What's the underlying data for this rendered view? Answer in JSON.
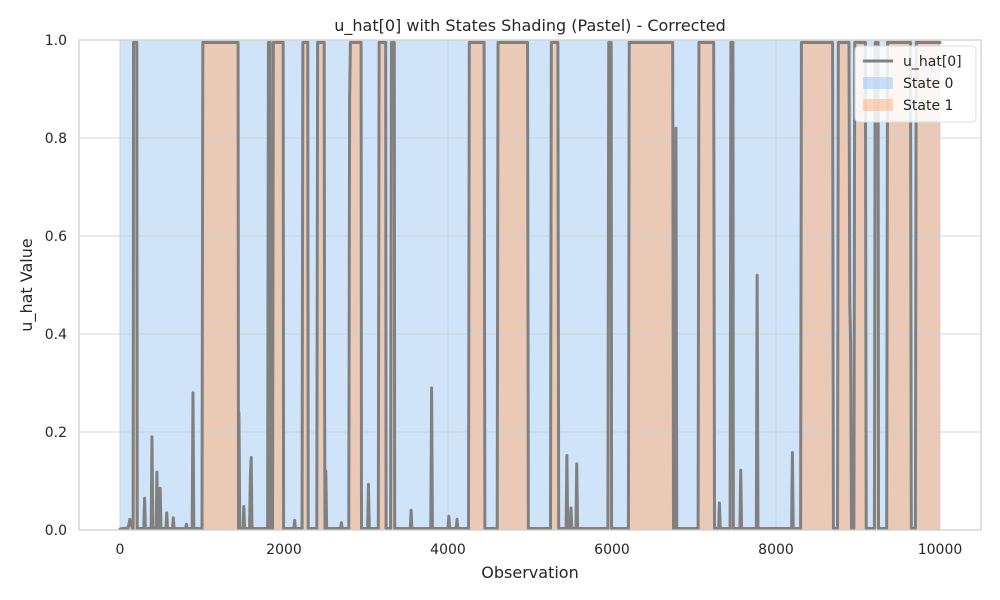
{
  "chart_data": {
    "type": "line",
    "title": "u_hat[0] with States Shading (Pastel) - Corrected",
    "xlabel": "Observation",
    "ylabel": "u_hat Value",
    "xlim": [
      -500,
      10500
    ],
    "ylim": [
      0,
      1
    ],
    "x_ticks": [
      0,
      2000,
      4000,
      6000,
      8000,
      10000
    ],
    "y_ticks": [
      0.0,
      0.2,
      0.4,
      0.6,
      0.8,
      1.0
    ],
    "x_tick_labels": [
      "0",
      "2000",
      "4000",
      "6000",
      "8000",
      "10000"
    ],
    "y_tick_labels": [
      "0.0",
      "0.2",
      "0.4",
      "0.6",
      "0.8",
      "1.0"
    ],
    "grid": true,
    "legend": {
      "placement": "top-right",
      "entries": [
        {
          "label": "u_hat[0]",
          "type": "line",
          "color": "#808080"
        },
        {
          "label": "State 0",
          "type": "patch",
          "color": "#a1c9f4"
        },
        {
          "label": "State 1",
          "type": "patch",
          "color": "#ffb482"
        }
      ]
    },
    "state_colors": {
      "0": "#a1c9f4",
      "1": "#ffb482"
    },
    "state1_intervals": [
      [
        160,
        210
      ],
      [
        1000,
        1450
      ],
      [
        1800,
        2000
      ],
      [
        2220,
        2300
      ],
      [
        2400,
        2500
      ],
      [
        2800,
        2950
      ],
      [
        3150,
        3250
      ],
      [
        3300,
        3350
      ],
      [
        4250,
        4450
      ],
      [
        4600,
        4980
      ],
      [
        5250,
        5350
      ],
      [
        5950,
        6000
      ],
      [
        6200,
        6750
      ],
      [
        7050,
        7250
      ],
      [
        7450,
        7480
      ],
      [
        8300,
        8700
      ],
      [
        8750,
        8900
      ],
      [
        8950,
        9100
      ],
      [
        9200,
        9250
      ],
      [
        9350,
        9650
      ],
      [
        9700,
        10000
      ]
    ],
    "series": [
      {
        "name": "u_hat[0]",
        "color": "#808080",
        "points": [
          [
            0,
            0.002
          ],
          [
            100,
            0.004
          ],
          [
            120,
            0.022
          ],
          [
            150,
            0.004
          ],
          [
            160,
            0.002
          ],
          [
            165,
            0.995
          ],
          [
            205,
            0.995
          ],
          [
            210,
            0.003
          ],
          [
            290,
            0.003
          ],
          [
            300,
            0.065
          ],
          [
            310,
            0.003
          ],
          [
            380,
            0.003
          ],
          [
            390,
            0.19
          ],
          [
            400,
            0.003
          ],
          [
            440,
            0.003
          ],
          [
            450,
            0.118
          ],
          [
            460,
            0.003
          ],
          [
            480,
            0.003
          ],
          [
            490,
            0.085
          ],
          [
            500,
            0.003
          ],
          [
            560,
            0.003
          ],
          [
            570,
            0.035
          ],
          [
            580,
            0.003
          ],
          [
            640,
            0.003
          ],
          [
            650,
            0.025
          ],
          [
            660,
            0.003
          ],
          [
            800,
            0.003
          ],
          [
            810,
            0.012
          ],
          [
            820,
            0.003
          ],
          [
            880,
            0.003
          ],
          [
            890,
            0.28
          ],
          [
            900,
            0.003
          ],
          [
            1000,
            0.003
          ],
          [
            1010,
            0.995
          ],
          [
            1440,
            0.995
          ],
          [
            1445,
            0.003
          ],
          [
            1450,
            0.24
          ],
          [
            1455,
            0.15
          ],
          [
            1460,
            0.003
          ],
          [
            1500,
            0.003
          ],
          [
            1510,
            0.048
          ],
          [
            1520,
            0.003
          ],
          [
            1580,
            0.003
          ],
          [
            1590,
            0.11
          ],
          [
            1600,
            0.148
          ],
          [
            1610,
            0.003
          ],
          [
            1800,
            0.003
          ],
          [
            1810,
            0.995
          ],
          [
            1830,
            0.995
          ],
          [
            1835,
            0.003
          ],
          [
            1860,
            0.003
          ],
          [
            1870,
            0.995
          ],
          [
            1990,
            0.995
          ],
          [
            1995,
            0.003
          ],
          [
            2120,
            0.003
          ],
          [
            2130,
            0.02
          ],
          [
            2140,
            0.003
          ],
          [
            2220,
            0.003
          ],
          [
            2230,
            0.995
          ],
          [
            2290,
            0.995
          ],
          [
            2295,
            0.003
          ],
          [
            2400,
            0.003
          ],
          [
            2410,
            0.995
          ],
          [
            2490,
            0.995
          ],
          [
            2495,
            0.29
          ],
          [
            2500,
            0.003
          ],
          [
            2510,
            0.12
          ],
          [
            2520,
            0.003
          ],
          [
            2690,
            0.003
          ],
          [
            2700,
            0.015
          ],
          [
            2710,
            0.003
          ],
          [
            2790,
            0.003
          ],
          [
            2800,
            0.88
          ],
          [
            2810,
            0.995
          ],
          [
            2940,
            0.995
          ],
          [
            2945,
            0.003
          ],
          [
            3020,
            0.003
          ],
          [
            3030,
            0.093
          ],
          [
            3040,
            0.003
          ],
          [
            3150,
            0.003
          ],
          [
            3160,
            0.995
          ],
          [
            3240,
            0.995
          ],
          [
            3245,
            0.003
          ],
          [
            3300,
            0.003
          ],
          [
            3310,
            0.995
          ],
          [
            3345,
            0.995
          ],
          [
            3350,
            0.003
          ],
          [
            3540,
            0.003
          ],
          [
            3550,
            0.04
          ],
          [
            3560,
            0.003
          ],
          [
            3790,
            0.003
          ],
          [
            3800,
            0.29
          ],
          [
            3810,
            0.003
          ],
          [
            4000,
            0.003
          ],
          [
            4010,
            0.028
          ],
          [
            4020,
            0.003
          ],
          [
            4100,
            0.003
          ],
          [
            4110,
            0.022
          ],
          [
            4120,
            0.003
          ],
          [
            4250,
            0.003
          ],
          [
            4260,
            0.995
          ],
          [
            4440,
            0.995
          ],
          [
            4450,
            0.003
          ],
          [
            4600,
            0.003
          ],
          [
            4610,
            0.995
          ],
          [
            4970,
            0.995
          ],
          [
            4980,
            0.003
          ],
          [
            5250,
            0.003
          ],
          [
            5260,
            0.995
          ],
          [
            5340,
            0.995
          ],
          [
            5350,
            0.003
          ],
          [
            5440,
            0.003
          ],
          [
            5450,
            0.152
          ],
          [
            5460,
            0.003
          ],
          [
            5490,
            0.003
          ],
          [
            5500,
            0.045
          ],
          [
            5510,
            0.003
          ],
          [
            5560,
            0.003
          ],
          [
            5570,
            0.135
          ],
          [
            5580,
            0.003
          ],
          [
            5950,
            0.003
          ],
          [
            5960,
            0.995
          ],
          [
            5990,
            0.995
          ],
          [
            5995,
            0.003
          ],
          [
            6200,
            0.003
          ],
          [
            6210,
            0.995
          ],
          [
            6740,
            0.995
          ],
          [
            6750,
            0.003
          ],
          [
            6770,
            0.003
          ],
          [
            6780,
            0.82
          ],
          [
            6790,
            0.003
          ],
          [
            7050,
            0.003
          ],
          [
            7060,
            0.995
          ],
          [
            7240,
            0.995
          ],
          [
            7250,
            0.003
          ],
          [
            7300,
            0.003
          ],
          [
            7310,
            0.055
          ],
          [
            7320,
            0.003
          ],
          [
            7440,
            0.003
          ],
          [
            7450,
            0.995
          ],
          [
            7475,
            0.995
          ],
          [
            7480,
            0.003
          ],
          [
            7560,
            0.003
          ],
          [
            7570,
            0.122
          ],
          [
            7580,
            0.003
          ],
          [
            7760,
            0.003
          ],
          [
            7770,
            0.52
          ],
          [
            7780,
            0.003
          ],
          [
            8190,
            0.003
          ],
          [
            8200,
            0.158
          ],
          [
            8210,
            0.003
          ],
          [
            8300,
            0.003
          ],
          [
            8310,
            0.995
          ],
          [
            8690,
            0.995
          ],
          [
            8700,
            0.003
          ],
          [
            8750,
            0.003
          ],
          [
            8760,
            0.995
          ],
          [
            8890,
            0.995
          ],
          [
            8900,
            0.46
          ],
          [
            8910,
            0.38
          ],
          [
            8920,
            0.003
          ],
          [
            8950,
            0.003
          ],
          [
            8960,
            0.995
          ],
          [
            9090,
            0.995
          ],
          [
            9100,
            0.003
          ],
          [
            9200,
            0.003
          ],
          [
            9210,
            0.995
          ],
          [
            9245,
            0.995
          ],
          [
            9250,
            0.003
          ],
          [
            9350,
            0.003
          ],
          [
            9360,
            0.995
          ],
          [
            9640,
            0.995
          ],
          [
            9650,
            0.003
          ],
          [
            9700,
            0.003
          ],
          [
            9710,
            0.995
          ],
          [
            9990,
            0.995
          ],
          [
            10000,
            0.995
          ]
        ]
      }
    ]
  }
}
